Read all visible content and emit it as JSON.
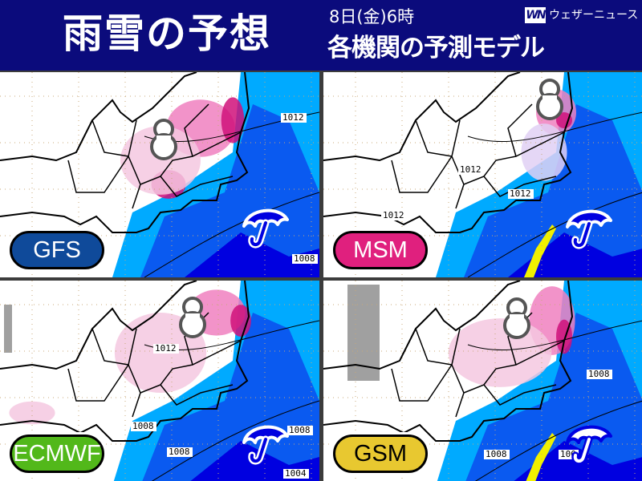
{
  "header": {
    "title": "雨雪の予想",
    "date": "8日(金)6時",
    "subtitle": "各機関の予測モデル",
    "logo_mark": "WN",
    "logo_text": "ウェザーニュース"
  },
  "colors": {
    "header_bg": "#0b0b7c",
    "sea_rain_light": "#00aaff",
    "sea_rain": "#0a5af0",
    "rain_heavy": "#0000e0",
    "snow_light": "#f4c8e0",
    "snow": "#f080c0",
    "snow_heavy": "#d0107a",
    "mixed": "#e0d0f4",
    "no_precip_cloud": "#a0a0a0"
  },
  "panels": [
    {
      "model": "GFS",
      "pill_color": "#0f4a9a",
      "text_color": "#ffffff",
      "icons": [
        "snowman-icon",
        "umbrella-icon"
      ],
      "isobars": [
        "1012",
        "1008"
      ]
    },
    {
      "model": "MSM",
      "pill_color": "#e0207e",
      "text_color": "#ffffff",
      "icons": [
        "snowman-icon",
        "umbrella-icon"
      ],
      "isobars": [
        "1012",
        "1012",
        "1012"
      ]
    },
    {
      "model": "ECMWF",
      "pill_color": "#52b81a",
      "text_color": "#ffffff",
      "icons": [
        "snowman-icon",
        "umbrella-icon"
      ],
      "isobars": [
        "1012",
        "1008",
        "1008",
        "1008",
        "1004"
      ]
    },
    {
      "model": "GSM",
      "pill_color": "#e8c830",
      "text_color": "#000000",
      "icons": [
        "snowman-icon",
        "umbrella-icon"
      ],
      "isobars": [
        "1008",
        "1008",
        "100"
      ]
    }
  ]
}
